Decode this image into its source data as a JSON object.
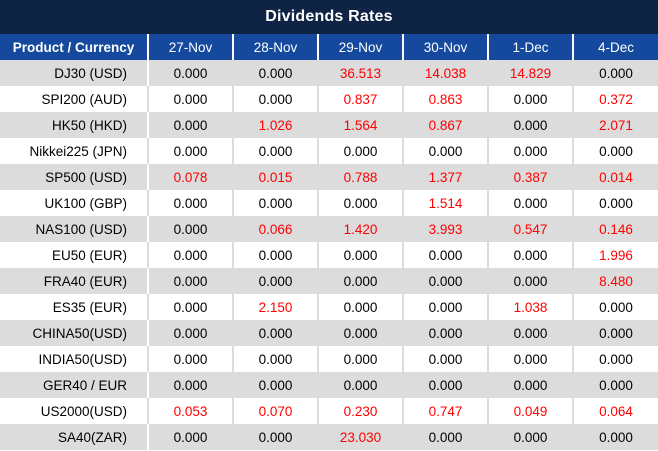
{
  "title": "Dividends Rates",
  "colors": {
    "title_bar_bg": "#0f2445",
    "title_text": "#ffffff",
    "header_bg": "#15499e",
    "header_text": "#ffffff",
    "stripe_row_bg": "#dcdcdc",
    "plain_row_bg": "#ffffff",
    "label_text": "#000000",
    "zero_value_text": "#000000",
    "nonzero_value_text": "#ff0000"
  },
  "table": {
    "product_header": "Product / Currency",
    "date_headers": [
      "27-Nov",
      "28-Nov",
      "29-Nov",
      "30-Nov",
      "1-Dec",
      "4-Dec"
    ],
    "zero_display": "0.000",
    "rows": [
      {
        "product": "DJ30 (USD)",
        "values": [
          "0.000",
          "0.000",
          "36.513",
          "14.038",
          "14.829",
          "0.000"
        ]
      },
      {
        "product": "SPI200 (AUD)",
        "values": [
          "0.000",
          "0.000",
          "0.837",
          "0.863",
          "0.000",
          "0.372"
        ]
      },
      {
        "product": "HK50 (HKD)",
        "values": [
          "0.000",
          "1.026",
          "1.564",
          "0.867",
          "0.000",
          "2.071"
        ]
      },
      {
        "product": "Nikkei225 (JPN)",
        "values": [
          "0.000",
          "0.000",
          "0.000",
          "0.000",
          "0.000",
          "0.000"
        ]
      },
      {
        "product": "SP500 (USD)",
        "values": [
          "0.078",
          "0.015",
          "0.788",
          "1.377",
          "0.387",
          "0.014"
        ]
      },
      {
        "product": "UK100 (GBP)",
        "values": [
          "0.000",
          "0.000",
          "0.000",
          "1.514",
          "0.000",
          "0.000"
        ]
      },
      {
        "product": "NAS100 (USD)",
        "values": [
          "0.000",
          "0.066",
          "1.420",
          "3.993",
          "0.547",
          "0.146"
        ]
      },
      {
        "product": "EU50 (EUR)",
        "values": [
          "0.000",
          "0.000",
          "0.000",
          "0.000",
          "0.000",
          "1.996"
        ]
      },
      {
        "product": "FRA40 (EUR)",
        "values": [
          "0.000",
          "0.000",
          "0.000",
          "0.000",
          "0.000",
          "8.480"
        ]
      },
      {
        "product": "ES35 (EUR)",
        "values": [
          "0.000",
          "2.150",
          "0.000",
          "0.000",
          "1.038",
          "0.000"
        ]
      },
      {
        "product": "CHINA50(USD)",
        "values": [
          "0.000",
          "0.000",
          "0.000",
          "0.000",
          "0.000",
          "0.000"
        ]
      },
      {
        "product": "INDIA50(USD)",
        "values": [
          "0.000",
          "0.000",
          "0.000",
          "0.000",
          "0.000",
          "0.000"
        ]
      },
      {
        "product": "GER40 / EUR",
        "values": [
          "0.000",
          "0.000",
          "0.000",
          "0.000",
          "0.000",
          "0.000"
        ]
      },
      {
        "product": "US2000(USD)",
        "values": [
          "0.053",
          "0.070",
          "0.230",
          "0.747",
          "0.049",
          "0.064"
        ]
      },
      {
        "product": "SA40(ZAR)",
        "values": [
          "0.000",
          "0.000",
          "23.030",
          "0.000",
          "0.000",
          "0.000"
        ]
      }
    ]
  }
}
